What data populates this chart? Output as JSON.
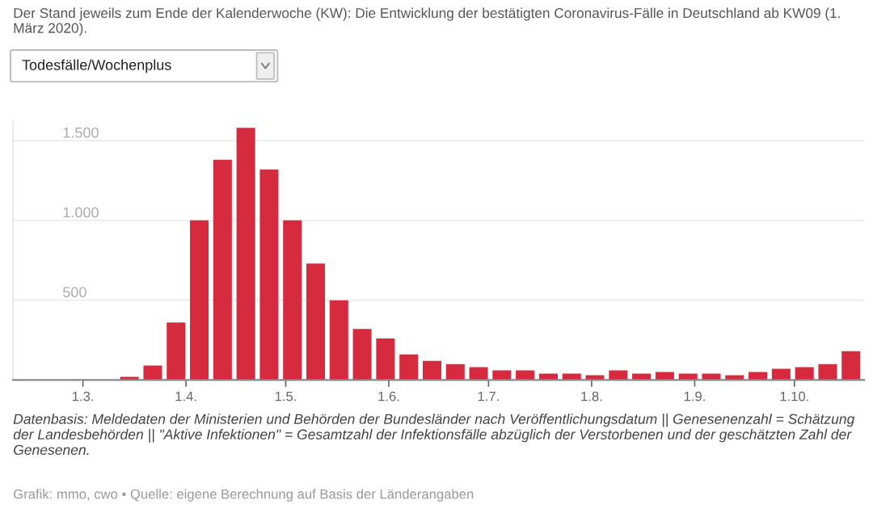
{
  "chart_data": {
    "type": "bar",
    "title": "Der Stand jeweils zum Ende der Kalenderwoche (KW): Die Entwicklung der bestätigten Coronavirus-Fälle in Deutschland ab KW09 (1. März 2020).",
    "subtitle": "Todesfälle/Wochenplus",
    "x": [
      "2020-03-15",
      "2020-03-22",
      "2020-03-29",
      "2020-04-05",
      "2020-04-12",
      "2020-04-19",
      "2020-04-26",
      "2020-05-03",
      "2020-05-10",
      "2020-05-17",
      "2020-05-24",
      "2020-05-31",
      "2020-06-07",
      "2020-06-14",
      "2020-06-21",
      "2020-06-28",
      "2020-07-05",
      "2020-07-12",
      "2020-07-19",
      "2020-07-26",
      "2020-08-02",
      "2020-08-09",
      "2020-08-16",
      "2020-08-23",
      "2020-08-30",
      "2020-09-06",
      "2020-09-13",
      "2020-09-20",
      "2020-09-27",
      "2020-10-04",
      "2020-10-11",
      "2020-10-18"
    ],
    "values": [
      20,
      90,
      360,
      1000,
      1380,
      1580,
      1320,
      1000,
      730,
      500,
      320,
      260,
      160,
      120,
      100,
      80,
      60,
      60,
      40,
      40,
      30,
      60,
      40,
      50,
      40,
      40,
      30,
      50,
      70,
      80,
      100,
      180
    ],
    "color": "#d62b3f",
    "xlim": [
      "2020-02-09",
      "2020-10-22"
    ],
    "xticks": [
      {
        "value": "2020-03-01",
        "label": "1.3."
      },
      {
        "value": "2020-04-01",
        "label": "1.4."
      },
      {
        "value": "2020-05-01",
        "label": "1.5."
      },
      {
        "value": "2020-06-01",
        "label": "1.6."
      },
      {
        "value": "2020-07-01",
        "label": "1.7."
      },
      {
        "value": "2020-08-01",
        "label": "1.8."
      },
      {
        "value": "2020-09-01",
        "label": "1.9."
      },
      {
        "value": "2020-10-01",
        "label": "1.10."
      }
    ],
    "ylim": [
      0,
      1620
    ],
    "yticks": [
      {
        "value": 500,
        "label": "500"
      },
      {
        "value": 1000,
        "label": "1.000"
      },
      {
        "value": 1500,
        "label": "1.500"
      }
    ],
    "grid": "y",
    "annotations": [
      "Datenbasis: Meldedaten der Ministerien und Behörden der Bundesländer nach Veröffentlichungsdatum || Genesenenzahl = Schätzung der Landesbehörden || \"Aktive Infektionen\" = Gesamtzahl der Infektionsfälle abzüglich der Verstorbenen und der geschätzten Zahl der Genesenen.",
      "Grafik: mmo, cwo • Quelle: eigene Berechnung auf Basis der Länderangaben"
    ]
  }
}
